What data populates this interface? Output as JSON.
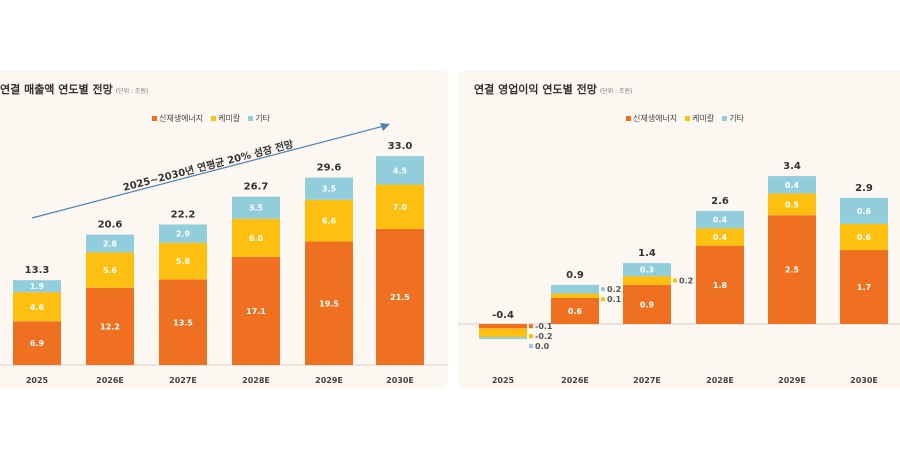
{
  "colors": {
    "renewable": "#f07022",
    "chemical": "#fdbf10",
    "other": "#92cddc",
    "arrow": "#4f81bd"
  },
  "chart_data": [
    {
      "type": "bar",
      "stacked": true,
      "title": "연결 매출액 연도별 전망",
      "unit": "(단위 : 조원)",
      "categories": [
        "2025",
        "2026E",
        "2027E",
        "2028E",
        "2029E",
        "2030E"
      ],
      "series": [
        {
          "name": "신재생에너지",
          "values": [
            6.9,
            12.2,
            13.5,
            17.1,
            19.5,
            21.5
          ]
        },
        {
          "name": "케미칼",
          "values": [
            4.6,
            5.6,
            5.8,
            6.0,
            6.6,
            7.0
          ]
        },
        {
          "name": "기타",
          "values": [
            1.9,
            2.8,
            2.9,
            3.5,
            3.5,
            4.5
          ]
        }
      ],
      "totals": [
        "13.3",
        "20.6",
        "22.2",
        "26.7",
        "29.6",
        "33.0"
      ],
      "annotation": "2025~2030년 연평균 20% 성장 전망",
      "legend": "top"
    },
    {
      "type": "bar",
      "stacked": true,
      "title": "연결 영업이익 연도별 전망",
      "unit": "(단위 : 조원)",
      "categories": [
        "2025",
        "2026E",
        "2027E",
        "2028E",
        "2029E",
        "2030E"
      ],
      "series": [
        {
          "name": "신재생에너지",
          "values": [
            -0.1,
            0.6,
            0.9,
            1.8,
            2.5,
            1.7
          ]
        },
        {
          "name": "케미칼",
          "values": [
            -0.2,
            0.1,
            0.2,
            0.4,
            0.5,
            0.6
          ]
        },
        {
          "name": "기타",
          "values": [
            0.0,
            0.2,
            0.3,
            0.4,
            0.4,
            0.6
          ]
        }
      ],
      "totals": [
        "-0.4",
        "0.9",
        "1.4",
        "2.6",
        "3.4",
        "2.9"
      ],
      "legend": "top"
    }
  ]
}
